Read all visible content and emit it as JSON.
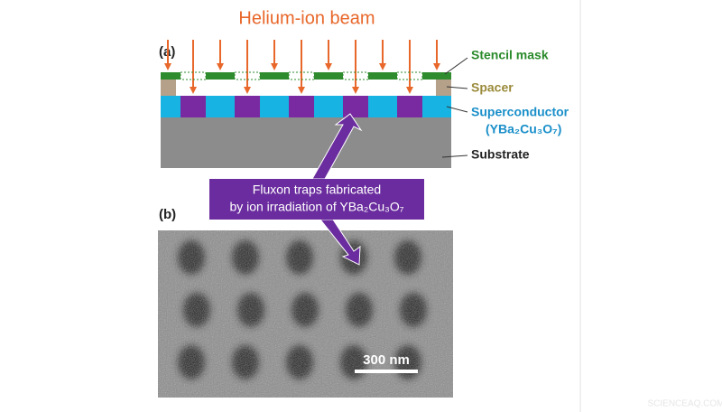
{
  "beam_label": "Helium-ion beam",
  "panel_a": {
    "label": "(a)",
    "layers": {
      "mask": "Stencil mask",
      "spacer": "Spacer",
      "superconductor": "Superconductor",
      "superconductor_formula": "(YBa₂Cu₃O₇)",
      "substrate": "Substrate"
    }
  },
  "callout": {
    "line1": "Fluxon traps fabricated",
    "line2": "by ion irradiation of YBa₂Cu₃O₇"
  },
  "panel_b": {
    "label": "(b)",
    "scale_bar": "300 nm"
  },
  "watermark": "SCIENCEAQ.COM"
}
